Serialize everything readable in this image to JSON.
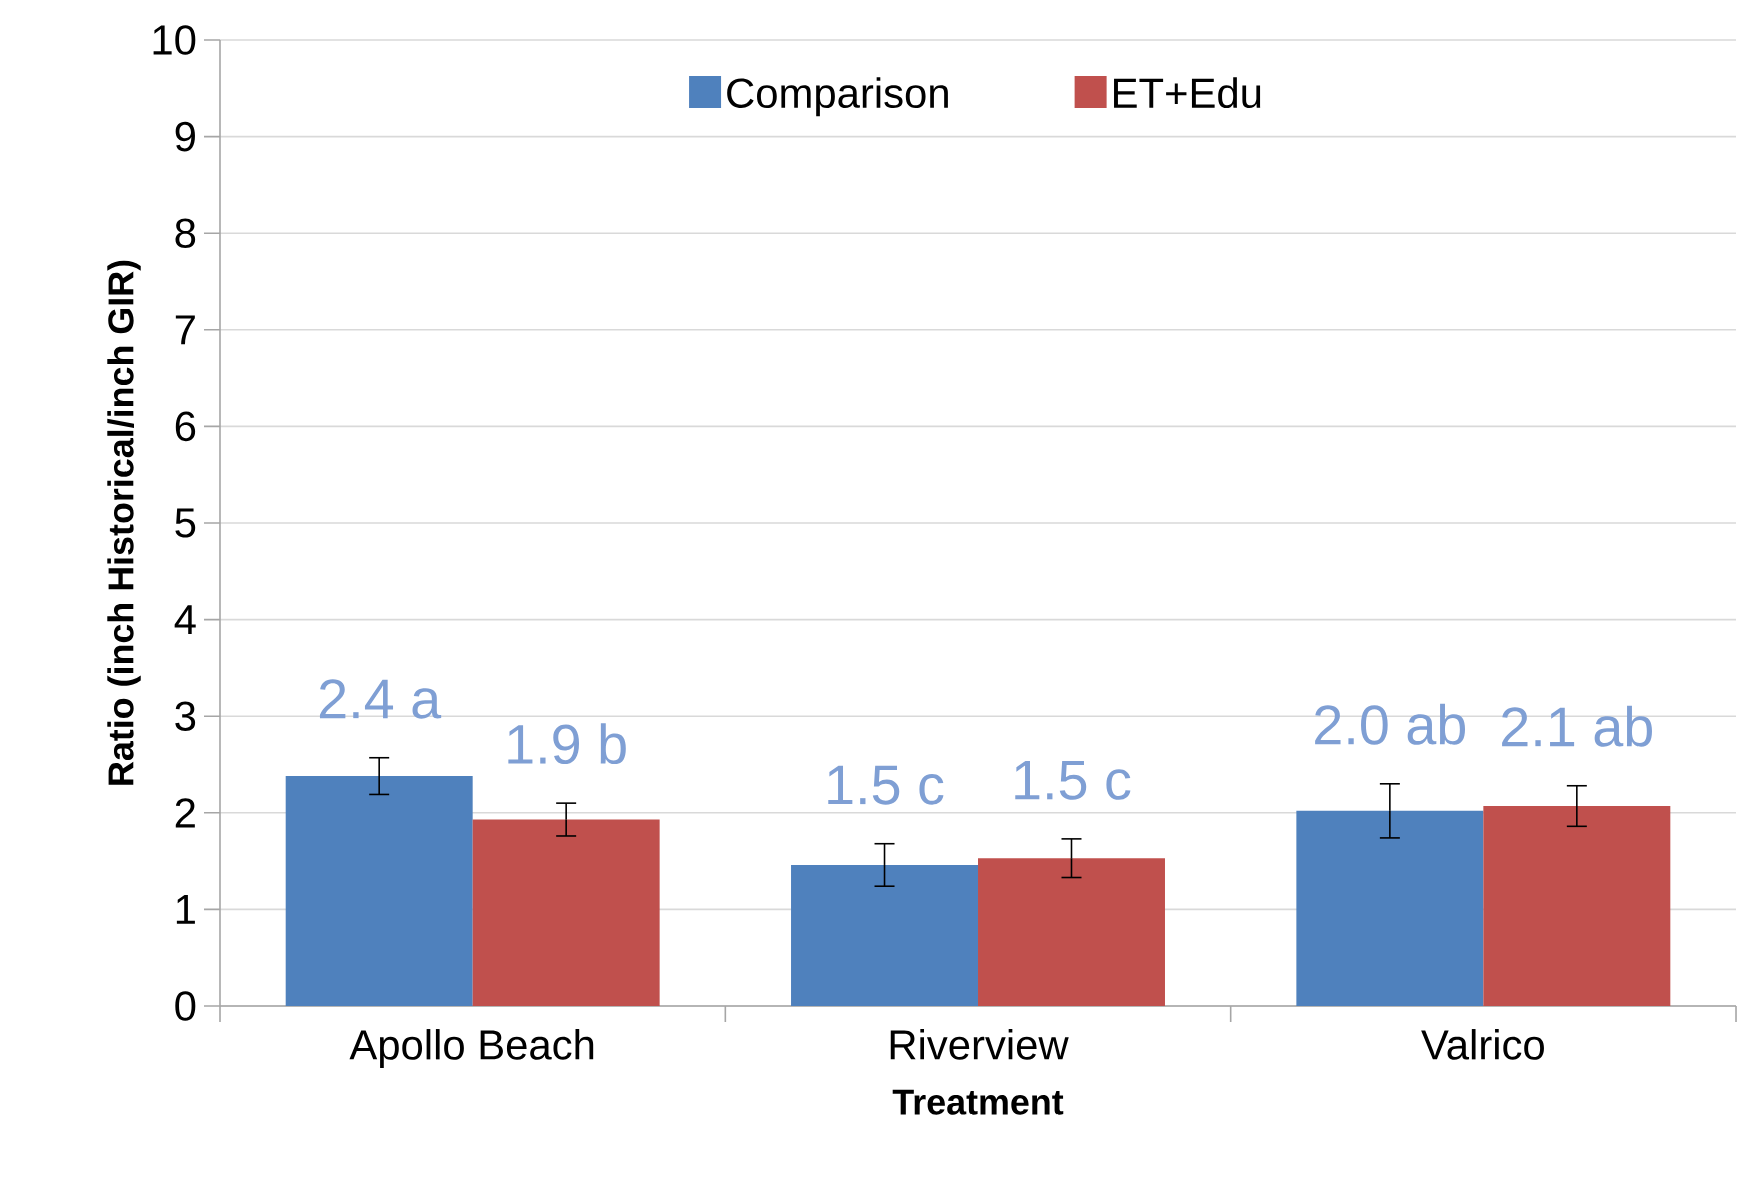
{
  "chart_data": {
    "type": "bar",
    "xlabel": "Treatment",
    "ylabel": "Ratio (inch Historical/inch GIR)",
    "categories": [
      "Apollo Beach",
      "Riverview",
      "Valrico"
    ],
    "series": [
      {
        "name": "Comparison",
        "color": "#4f81bd",
        "values": [
          2.38,
          1.46,
          2.02
        ],
        "errors": [
          0.19,
          0.22,
          0.28
        ],
        "value_labels": [
          "2.4 a",
          "1.5 c",
          "2.0 ab"
        ]
      },
      {
        "name": "ET+Edu",
        "color": "#c0504d",
        "values": [
          1.93,
          1.53,
          2.07
        ],
        "errors": [
          0.17,
          0.2,
          0.21
        ],
        "value_labels": [
          "1.9 b",
          "1.5 c",
          "2.1 ab"
        ]
      }
    ],
    "ylim": [
      0,
      10
    ],
    "yticks": [
      0,
      1,
      2,
      3,
      4,
      5,
      6,
      7,
      8,
      9,
      10
    ],
    "grid": "y",
    "legend": "top"
  }
}
